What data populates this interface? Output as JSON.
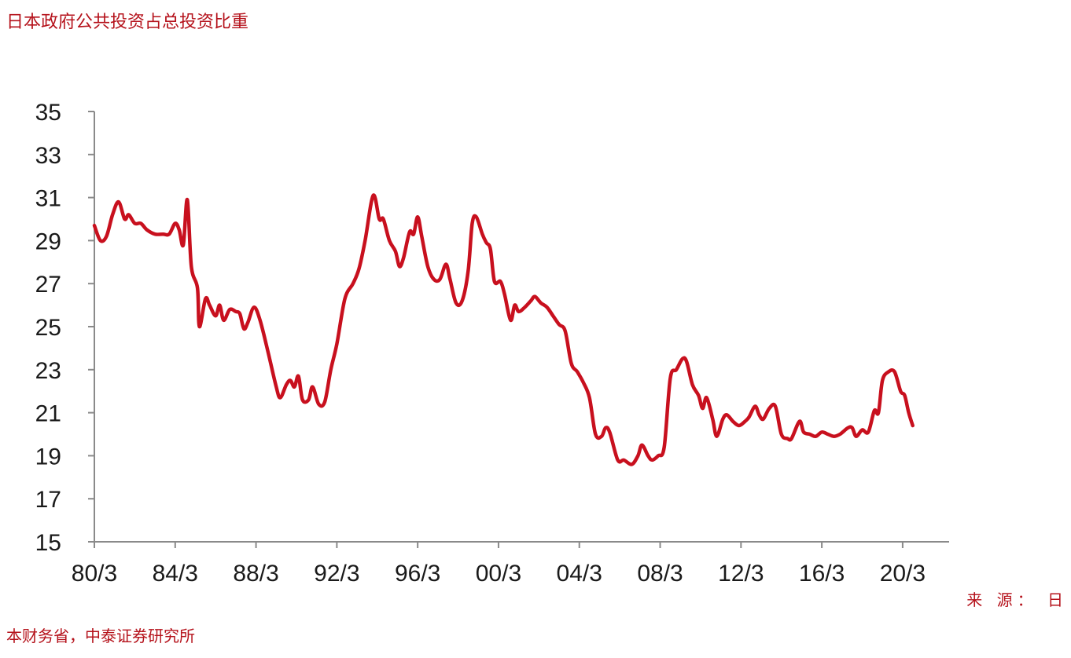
{
  "title": "日本政府公共投资占总投资比重",
  "source_line1": "来 源： 日",
  "source_line2": "本财务省，中泰证券研究所",
  "colors": {
    "line": "#c8101e",
    "text_accent": "#b5121b",
    "axis": "#8a8a8a"
  },
  "chart_data": {
    "type": "line",
    "title": "日本政府公共投资占总投资比重",
    "xlabel": "",
    "ylabel": "",
    "ylim": [
      15,
      35
    ],
    "yticks": [
      15,
      17,
      19,
      21,
      23,
      25,
      27,
      29,
      31,
      33,
      35
    ],
    "xlim": [
      1980.0,
      2022.3
    ],
    "xticks": [
      {
        "x": 1980.0,
        "label": "80/3"
      },
      {
        "x": 1984.0,
        "label": "84/3"
      },
      {
        "x": 1988.0,
        "label": "88/3"
      },
      {
        "x": 1992.0,
        "label": "92/3"
      },
      {
        "x": 1996.0,
        "label": "96/3"
      },
      {
        "x": 2000.0,
        "label": "00/3"
      },
      {
        "x": 2004.0,
        "label": "04/3"
      },
      {
        "x": 2008.0,
        "label": "08/3"
      },
      {
        "x": 2012.0,
        "label": "12/3"
      },
      {
        "x": 2016.0,
        "label": "16/3"
      },
      {
        "x": 2020.0,
        "label": "20/3"
      }
    ],
    "grid": false,
    "series": [
      {
        "values": [
          [
            1980.0,
            29.7
          ],
          [
            1980.3,
            29.0
          ],
          [
            1980.6,
            29.2
          ],
          [
            1980.9,
            30.2
          ],
          [
            1981.2,
            30.8
          ],
          [
            1981.5,
            30.0
          ],
          [
            1981.7,
            30.2
          ],
          [
            1982.0,
            29.8
          ],
          [
            1982.3,
            29.8
          ],
          [
            1982.6,
            29.5
          ],
          [
            1983.0,
            29.3
          ],
          [
            1983.4,
            29.3
          ],
          [
            1983.7,
            29.3
          ],
          [
            1984.0,
            29.8
          ],
          [
            1984.2,
            29.5
          ],
          [
            1984.4,
            28.8
          ],
          [
            1984.6,
            30.9
          ],
          [
            1984.8,
            27.8
          ],
          [
            1985.1,
            26.8
          ],
          [
            1985.2,
            25.0
          ],
          [
            1985.5,
            26.3
          ],
          [
            1985.7,
            26.0
          ],
          [
            1986.0,
            25.5
          ],
          [
            1986.2,
            26.0
          ],
          [
            1986.4,
            25.3
          ],
          [
            1986.7,
            25.8
          ],
          [
            1987.0,
            25.7
          ],
          [
            1987.2,
            25.6
          ],
          [
            1987.4,
            24.9
          ],
          [
            1987.6,
            25.2
          ],
          [
            1987.9,
            25.9
          ],
          [
            1988.2,
            25.3
          ],
          [
            1988.6,
            23.8
          ],
          [
            1989.0,
            22.2
          ],
          [
            1989.2,
            21.7
          ],
          [
            1989.5,
            22.3
          ],
          [
            1989.7,
            22.5
          ],
          [
            1989.9,
            22.2
          ],
          [
            1990.1,
            22.7
          ],
          [
            1990.3,
            21.6
          ],
          [
            1990.6,
            21.6
          ],
          [
            1990.8,
            22.2
          ],
          [
            1991.1,
            21.4
          ],
          [
            1991.4,
            21.5
          ],
          [
            1991.7,
            23.0
          ],
          [
            1992.0,
            24.2
          ],
          [
            1992.4,
            26.3
          ],
          [
            1992.8,
            27.0
          ],
          [
            1993.1,
            27.7
          ],
          [
            1993.4,
            29.0
          ],
          [
            1993.8,
            31.1
          ],
          [
            1994.1,
            30.0
          ],
          [
            1994.3,
            30.0
          ],
          [
            1994.6,
            29.0
          ],
          [
            1994.9,
            28.5
          ],
          [
            1995.1,
            27.8
          ],
          [
            1995.3,
            28.2
          ],
          [
            1995.6,
            29.4
          ],
          [
            1995.8,
            29.3
          ],
          [
            1996.0,
            30.1
          ],
          [
            1996.2,
            29.2
          ],
          [
            1996.5,
            27.8
          ],
          [
            1996.8,
            27.2
          ],
          [
            1997.1,
            27.2
          ],
          [
            1997.4,
            27.9
          ],
          [
            1997.6,
            27.2
          ],
          [
            1997.9,
            26.1
          ],
          [
            1998.2,
            26.2
          ],
          [
            1998.5,
            27.6
          ],
          [
            1998.7,
            29.8
          ],
          [
            1998.9,
            30.1
          ],
          [
            1999.2,
            29.3
          ],
          [
            1999.4,
            28.9
          ],
          [
            1999.6,
            28.6
          ],
          [
            1999.8,
            27.1
          ],
          [
            2000.1,
            27.1
          ],
          [
            2000.3,
            26.5
          ],
          [
            2000.6,
            25.3
          ],
          [
            2000.8,
            26.0
          ],
          [
            2001.0,
            25.7
          ],
          [
            2001.3,
            25.9
          ],
          [
            2001.6,
            26.2
          ],
          [
            2001.8,
            26.4
          ],
          [
            2002.1,
            26.1
          ],
          [
            2002.4,
            25.9
          ],
          [
            2002.7,
            25.5
          ],
          [
            2003.0,
            25.1
          ],
          [
            2003.3,
            24.8
          ],
          [
            2003.6,
            23.3
          ],
          [
            2003.9,
            22.9
          ],
          [
            2004.2,
            22.4
          ],
          [
            2004.5,
            21.7
          ],
          [
            2004.8,
            20.0
          ],
          [
            2005.1,
            19.9
          ],
          [
            2005.3,
            20.3
          ],
          [
            2005.5,
            20.1
          ],
          [
            2005.9,
            18.8
          ],
          [
            2006.2,
            18.8
          ],
          [
            2006.6,
            18.6
          ],
          [
            2006.9,
            19.0
          ],
          [
            2007.1,
            19.5
          ],
          [
            2007.4,
            19.0
          ],
          [
            2007.6,
            18.8
          ],
          [
            2007.9,
            19.0
          ],
          [
            2008.2,
            19.4
          ],
          [
            2008.5,
            22.6
          ],
          [
            2008.8,
            23.0
          ],
          [
            2009.1,
            23.5
          ],
          [
            2009.3,
            23.4
          ],
          [
            2009.6,
            22.3
          ],
          [
            2009.9,
            21.8
          ],
          [
            2010.1,
            21.2
          ],
          [
            2010.3,
            21.7
          ],
          [
            2010.6,
            20.7
          ],
          [
            2010.8,
            19.9
          ],
          [
            2011.1,
            20.7
          ],
          [
            2011.3,
            20.9
          ],
          [
            2011.6,
            20.6
          ],
          [
            2011.9,
            20.4
          ],
          [
            2012.2,
            20.6
          ],
          [
            2012.4,
            20.8
          ],
          [
            2012.7,
            21.3
          ],
          [
            2012.9,
            20.9
          ],
          [
            2013.1,
            20.7
          ],
          [
            2013.4,
            21.2
          ],
          [
            2013.7,
            21.3
          ],
          [
            2014.0,
            20.0
          ],
          [
            2014.3,
            19.8
          ],
          [
            2014.5,
            19.8
          ],
          [
            2014.9,
            20.6
          ],
          [
            2015.1,
            20.1
          ],
          [
            2015.4,
            20.0
          ],
          [
            2015.7,
            19.9
          ],
          [
            2016.0,
            20.1
          ],
          [
            2016.3,
            20.0
          ],
          [
            2016.6,
            19.9
          ],
          [
            2016.9,
            20.0
          ],
          [
            2017.3,
            20.3
          ],
          [
            2017.5,
            20.3
          ],
          [
            2017.7,
            19.9
          ],
          [
            2018.0,
            20.2
          ],
          [
            2018.3,
            20.1
          ],
          [
            2018.6,
            21.1
          ],
          [
            2018.8,
            21.0
          ],
          [
            2019.0,
            22.5
          ],
          [
            2019.3,
            22.9
          ],
          [
            2019.6,
            22.9
          ],
          [
            2019.9,
            22.0
          ],
          [
            2020.1,
            21.8
          ],
          [
            2020.3,
            21.0
          ],
          [
            2020.5,
            20.4
          ]
        ]
      }
    ]
  }
}
